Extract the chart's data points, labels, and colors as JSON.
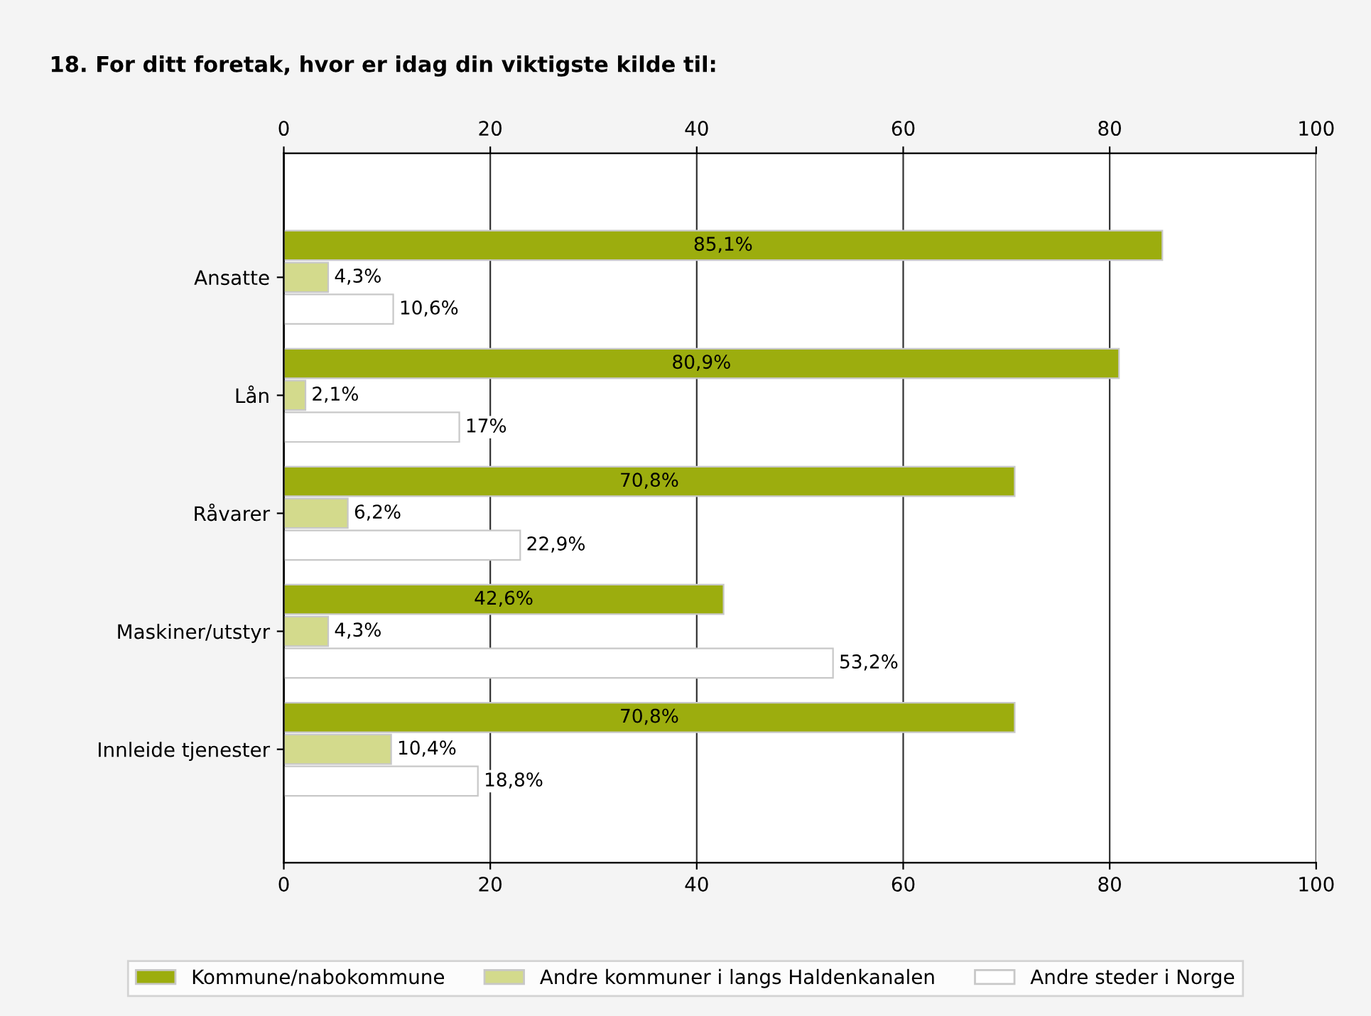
{
  "chart_data": {
    "type": "bar",
    "orientation": "horizontal",
    "title": "18. For ditt foretak, hvor er idag din viktigste kilde til:",
    "categories": [
      "Ansatte",
      "Lån",
      "Råvarer",
      "Maskiner/utstyr",
      "Innleide tjenester"
    ],
    "series": [
      {
        "name": "Kommune/nabokommune",
        "color": "#9cad0e",
        "values": [
          85.1,
          80.9,
          70.8,
          42.6,
          70.8
        ],
        "value_labels": [
          "85,1%",
          "80,9%",
          "70,8%",
          "42,6%",
          "70,8%"
        ]
      },
      {
        "name": "Andre kommuner i langs Haldenkanalen",
        "color": "#d3da8c",
        "values": [
          4.3,
          2.1,
          6.2,
          4.3,
          10.4
        ],
        "value_labels": [
          "4,3%",
          "2,1%",
          "6,2%",
          "4,3%",
          "10,4%"
        ]
      },
      {
        "name": "Andre steder i Norge",
        "color": "#ffffff",
        "values": [
          10.6,
          17,
          22.9,
          53.2,
          18.8
        ],
        "value_labels": [
          "10,6%",
          "17%",
          "22,9%",
          "53,2%",
          "18,8%"
        ]
      }
    ],
    "xlim": [
      0,
      100
    ],
    "xticks": [
      0,
      20,
      40,
      60,
      80,
      100
    ],
    "x2lim": [
      0,
      100
    ],
    "x2ticks": [
      0,
      20,
      40,
      60,
      80,
      100
    ],
    "grid": "x",
    "legend": "bottom"
  }
}
